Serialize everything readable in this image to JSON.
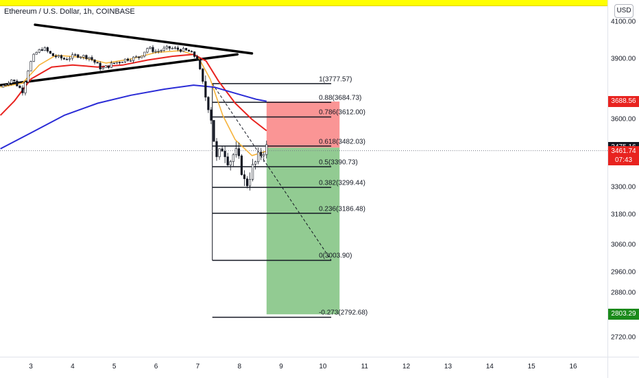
{
  "header": {
    "title": "Ethereum / U.S. Dollar, 1h, COINBASE"
  },
  "price_axis": {
    "currency": "USD"
  },
  "colors": {
    "candle_up": "#26a69a",
    "candle_down": "#ef5350",
    "wick": "#131722",
    "ma_fast": "#f6b33b",
    "ma_mid": "#e8231f",
    "ma_slow": "#2a2bd6",
    "stop_zone": "#f98a8a",
    "target_zone": "#8cc88c",
    "tag_current": "#131722",
    "tag_live": "#e8231f",
    "tag_stop": "#e8231f",
    "tag_target": "#1b8a1b"
  },
  "chart_data": {
    "type": "candlestick",
    "title": "Ethereum / U.S. Dollar, 1h, COINBASE",
    "instrument": "ETHUSD",
    "interval": "1h",
    "exchange": "COINBASE",
    "currency": "USD",
    "x_ticks": [
      "3",
      "4",
      "5",
      "6",
      "7",
      "8",
      "9",
      "10",
      "11",
      "12",
      "13",
      "14",
      "15",
      "16"
    ],
    "x_tick_values": [
      3,
      4,
      5,
      6,
      7,
      8,
      9,
      10,
      11,
      12,
      13,
      14,
      15,
      16
    ],
    "xlim": [
      2.27,
      16.71
    ],
    "y_ticks": [
      "4100.00",
      "3900.00",
      "3600.00",
      "3300.00",
      "3180.00",
      "3060.00",
      "2960.00",
      "2880.00",
      "2720.00"
    ],
    "y_tick_values": [
      4100,
      3900,
      3600,
      3300,
      3180,
      3060,
      2960,
      2880,
      2720
    ],
    "price_tags": [
      {
        "id": "stop",
        "label": "3688.56",
        "value": 3688.56
      },
      {
        "id": "current",
        "label": "3475.16",
        "value": 3475.16
      },
      {
        "id": "live",
        "label": "3461.74",
        "countdown": "07:43",
        "value": 3461.74
      },
      {
        "id": "target",
        "label": "2803.29",
        "value": 2803.29
      }
    ],
    "candle_path": [
      [
        2.27,
        3760
      ],
      [
        2.55,
        3800
      ],
      [
        2.8,
        3740
      ],
      [
        2.95,
        3860
      ],
      [
        3.1,
        3930
      ],
      [
        3.3,
        3960
      ],
      [
        3.5,
        3920
      ],
      [
        3.8,
        3900
      ],
      [
        4.1,
        3920
      ],
      [
        4.4,
        3910
      ],
      [
        4.7,
        3850
      ],
      [
        5.0,
        3880
      ],
      [
        5.3,
        3900
      ],
      [
        5.6,
        3910
      ],
      [
        5.8,
        3960
      ],
      [
        6.0,
        3940
      ],
      [
        6.3,
        3960
      ],
      [
        6.6,
        3950
      ],
      [
        6.8,
        3940
      ],
      [
        7.0,
        3900
      ],
      [
        7.15,
        3740
      ],
      [
        7.3,
        3640
      ],
      [
        7.45,
        3420
      ],
      [
        7.6,
        3480
      ],
      [
        7.75,
        3410
      ],
      [
        7.9,
        3460
      ],
      [
        8.05,
        3380
      ],
      [
        8.15,
        3300
      ],
      [
        8.3,
        3380
      ],
      [
        8.45,
        3430
      ],
      [
        8.6,
        3470
      ],
      [
        8.65,
        3475
      ]
    ],
    "series": [
      {
        "name": "",
        "role": "ma-fast",
        "points": [
          [
            2.27,
            3760
          ],
          [
            2.8,
            3780
          ],
          [
            3.2,
            3870
          ],
          [
            3.6,
            3920
          ],
          [
            4.2,
            3910
          ],
          [
            4.8,
            3880
          ],
          [
            5.4,
            3900
          ],
          [
            6.0,
            3935
          ],
          [
            6.6,
            3945
          ],
          [
            7.0,
            3915
          ],
          [
            7.3,
            3800
          ],
          [
            7.6,
            3620
          ],
          [
            7.9,
            3510
          ],
          [
            8.3,
            3440
          ],
          [
            8.65,
            3460
          ]
        ]
      },
      {
        "name": "",
        "role": "ma-mid",
        "points": [
          [
            2.27,
            3620
          ],
          [
            2.6,
            3690
          ],
          [
            3.0,
            3800
          ],
          [
            3.5,
            3860
          ],
          [
            4.0,
            3870
          ],
          [
            4.6,
            3860
          ],
          [
            5.2,
            3870
          ],
          [
            5.8,
            3895
          ],
          [
            6.4,
            3915
          ],
          [
            6.9,
            3925
          ],
          [
            7.2,
            3890
          ],
          [
            7.5,
            3790
          ],
          [
            7.9,
            3680
          ],
          [
            8.3,
            3600
          ],
          [
            8.65,
            3550
          ]
        ]
      },
      {
        "name": "",
        "role": "ma-slow",
        "points": [
          [
            2.27,
            3470
          ],
          [
            3.0,
            3540
          ],
          [
            3.8,
            3620
          ],
          [
            4.6,
            3680
          ],
          [
            5.4,
            3720
          ],
          [
            6.2,
            3750
          ],
          [
            6.9,
            3770
          ],
          [
            7.4,
            3760
          ],
          [
            7.9,
            3730
          ],
          [
            8.4,
            3700
          ],
          [
            8.65,
            3690
          ]
        ]
      }
    ],
    "trendlines": [
      {
        "from": [
          2.27,
          3770
        ],
        "to": [
          7.95,
          3925
        ]
      },
      {
        "from": [
          3.1,
          4085
        ],
        "to": [
          8.3,
          3930
        ]
      }
    ],
    "current_price_line": 3461.74,
    "fibonacci": {
      "x_start": 7.35,
      "x_end": 10.2,
      "levels": [
        {
          "ratio": "1",
          "value": 3777.57
        },
        {
          "ratio": "0.88",
          "value": 3684.73
        },
        {
          "ratio": "0.786",
          "value": 3612.0
        },
        {
          "ratio": "0.618",
          "value": 3482.03
        },
        {
          "ratio": "0.5",
          "value": 3390.73
        },
        {
          "ratio": "0.382",
          "value": 3299.44
        },
        {
          "ratio": "0.236",
          "value": 3186.48
        },
        {
          "ratio": "0",
          "value": 3003.9
        },
        {
          "ratio": "-0.273",
          "value": 2792.68
        }
      ],
      "trend_line": {
        "from": [
          7.35,
          3777.57
        ],
        "to": [
          10.2,
          3003.9
        ]
      },
      "anchor_vertical": {
        "x": 7.35,
        "from": 3003.9,
        "to": 3777.57
      }
    },
    "short_position": {
      "x_start": 8.65,
      "x_end": 10.4,
      "entry": 3475.16,
      "stop": 3688.56,
      "target": 2803.29
    }
  }
}
